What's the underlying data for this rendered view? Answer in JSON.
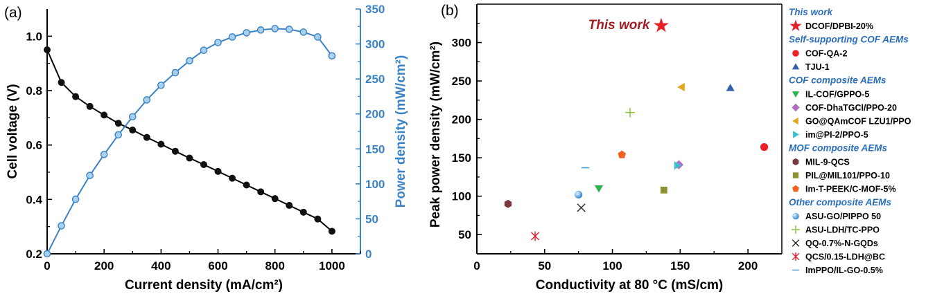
{
  "colors": {
    "black": "#000000",
    "blue": "#3a82c4",
    "sectionBlue": "#2a6ebd",
    "thisWork": "#a11d24"
  },
  "chart_data": [
    {
      "panel_label": "(a)",
      "type": "line",
      "xlabel": "Current density (mA/cm²)",
      "ylabel_left": "Cell voltage (V)",
      "ylabel_right": "Power density (mW/cm²)",
      "xlim": [
        0,
        1100
      ],
      "ylim_left": [
        0.2,
        1.1
      ],
      "ylim_right": [
        0,
        350
      ],
      "xticks": [
        "0",
        "200",
        "400",
        "600",
        "800",
        "1000"
      ],
      "yticks_left": [
        "0.2",
        "0.4",
        "0.6",
        "0.8",
        "1.0"
      ],
      "yticks_right": [
        "0",
        "50",
        "100",
        "150",
        "200",
        "250",
        "300",
        "350"
      ],
      "series": [
        {
          "axis": "left",
          "color": "#000000",
          "x": [
            0,
            50,
            100,
            150,
            200,
            250,
            300,
            350,
            400,
            450,
            500,
            550,
            600,
            650,
            700,
            750,
            800,
            850,
            900,
            950,
            1000
          ],
          "y": [
            0.95,
            0.83,
            0.778,
            0.742,
            0.71,
            0.68,
            0.655,
            0.628,
            0.603,
            0.577,
            0.552,
            0.528,
            0.503,
            0.478,
            0.453,
            0.428,
            0.403,
            0.378,
            0.353,
            0.328,
            0.283
          ]
        },
        {
          "axis": "right",
          "color": "#3a82c4",
          "x": [
            0,
            50,
            100,
            150,
            200,
            250,
            300,
            350,
            400,
            450,
            500,
            550,
            600,
            650,
            700,
            750,
            800,
            850,
            900,
            950,
            1000
          ],
          "y": [
            0,
            40,
            78,
            112,
            142,
            170,
            196,
            220,
            241,
            259,
            276,
            291,
            302,
            310,
            316,
            320,
            322,
            321,
            317,
            310,
            283
          ]
        }
      ]
    },
    {
      "panel_label": "(b)",
      "type": "scatter",
      "xlabel": "Conductivity at 80 °C (mS/cm)",
      "ylabel": "Peak power density (mW/cm²)",
      "xlim": [
        0,
        225
      ],
      "ylim": [
        25,
        350
      ],
      "xticks": [
        "0",
        "50",
        "100",
        "150",
        "200"
      ],
      "yticks": [
        "50",
        "100",
        "150",
        "200",
        "250",
        "300"
      ],
      "annotation": "This work",
      "legend_groups": [
        {
          "title": "This work",
          "items": [
            {
              "name": "DCOF/DPBI-20%",
              "marker": "star",
              "color": "#e8202a",
              "x": 136,
              "y": 322
            }
          ]
        },
        {
          "title": "Self-supporting COF AEMs",
          "items": [
            {
              "name": "COF-QA-2",
              "marker": "circle",
              "color": "#ec2027",
              "x": 212,
              "y": 164
            },
            {
              "name": "TJU-1",
              "marker": "triangle-up",
              "color": "#3360ad",
              "x": 187,
              "y": 241
            }
          ]
        },
        {
          "title": "COF composite AEMs",
          "items": [
            {
              "name": "IL-COF/GPPO-5",
              "marker": "triangle-down",
              "color": "#2cb34a",
              "x": 90,
              "y": 110
            },
            {
              "name": "COF-DhaTGCl/PPO-20",
              "marker": "diamond",
              "color": "#b36bc0",
              "x": 149,
              "y": 141
            },
            {
              "name": "GO@QAmCOF LZU1/PPO",
              "marker": "triangle-left",
              "color": "#e0a71f",
              "x": 151,
              "y": 242
            },
            {
              "name": "im@PI-2/PPO-5",
              "marker": "triangle-right",
              "color": "#3cbfd0",
              "x": 148,
              "y": 140
            }
          ]
        },
        {
          "title": "MOF composite AEMs",
          "items": [
            {
              "name": "MIL-9-QCS",
              "marker": "hexagon",
              "color": "#7a3a3d",
              "x": 23,
              "y": 90
            },
            {
              "name": "PIL@MIL101/PPO-10",
              "marker": "square",
              "color": "#8c9230",
              "x": 138,
              "y": 108
            },
            {
              "name": "Im-T-PEEK/C-MOF-5%",
              "marker": "pentagon",
              "color": "#f2621f",
              "x": 107,
              "y": 154
            }
          ]
        },
        {
          "title": "Other composite AEMs",
          "items": [
            {
              "name": "ASU-GO/PIPPO 50",
              "marker": "sphere",
              "color": "#4a9ee0",
              "x": 75,
              "y": 102
            },
            {
              "name": "ASU-LDH/TC-PPO",
              "marker": "plus",
              "color": "#8cc63e",
              "x": 113,
              "y": 209
            },
            {
              "name": "QQ-0.7%-N-GQDs",
              "marker": "x",
              "color": "#333333",
              "x": 77,
              "y": 85
            },
            {
              "name": "QCS/0.15-LDH@BC",
              "marker": "asterisk",
              "color": "#e8202a",
              "x": 43,
              "y": 48
            },
            {
              "name": "ImPPO/IL-GO-0.5%",
              "marker": "dash",
              "color": "#4a9ee0",
              "x": 80,
              "y": 137
            }
          ]
        }
      ]
    }
  ]
}
